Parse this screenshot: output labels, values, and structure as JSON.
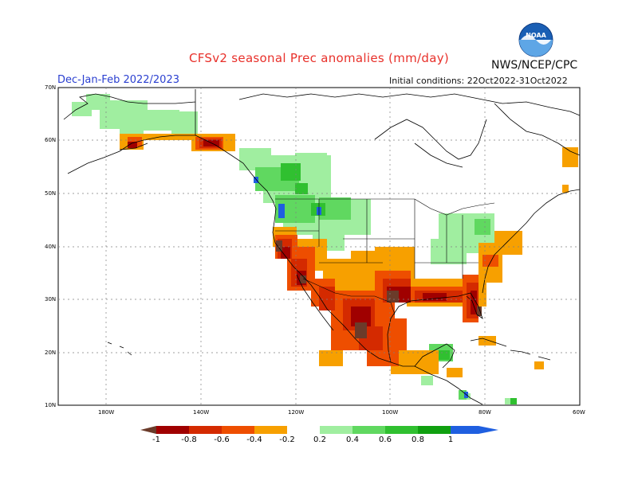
{
  "title": "CFSv2 seasonal Prec anomalies (mm/day)",
  "agency": "NWS/NCEP/CPC",
  "season": "Dec-Jan-Feb 2022/2023",
  "initial_conditions": "Initial conditions: 22Oct2022-31Oct2022",
  "logo": {
    "text": "NOAA",
    "colors": {
      "top": "#1a5fb4",
      "bottom": "#5ea6e6"
    }
  },
  "axes": {
    "lat_labels": [
      "70N",
      "60N",
      "50N",
      "40N",
      "30N",
      "20N",
      "10N"
    ],
    "lon_labels": [
      "180W",
      "140W",
      "120W",
      "100W",
      "80W",
      "60W"
    ]
  },
  "colorbar": {
    "labels": [
      "-1",
      "-0.8",
      "-0.6",
      "-0.4",
      "-0.2",
      "0.2",
      "0.4",
      "0.6",
      "0.8",
      "1"
    ],
    "colors": {
      "lt_-1": "#6b3b2a",
      "-1_-0.8": "#a00000",
      "-0.8_-0.6": "#d42a00",
      "-0.6_-0.4": "#ee4e00",
      "-0.4_-0.2": "#f7a000",
      "0.2_0.4": "#a0eea0",
      "0.4_0.6": "#60d860",
      "0.6_0.8": "#30c030",
      "0.8_1": "#10a010",
      "gt_1": "#1f5fe0"
    }
  }
}
